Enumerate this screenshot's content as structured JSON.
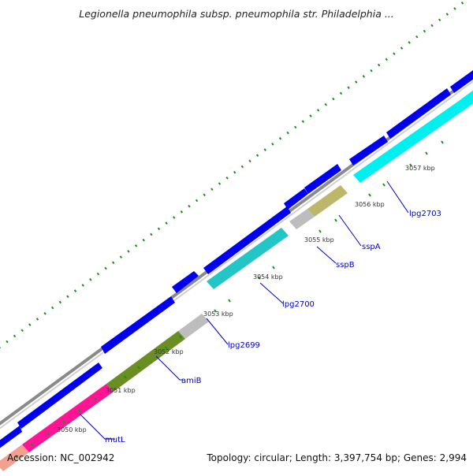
{
  "title": "Legionella pneumophila subsp. pneumophila str. Philadelphia ...",
  "footer": {
    "accession": "Accession: NC_002942",
    "summary": "Topology: circular; Length: 3,397,754 bp; Genes: 2,994"
  },
  "colors": {
    "backbone": "#7f7f7f",
    "forward_genes": "#0000ee",
    "gc_ticks": "#1a8f1a",
    "label_text": "#0000cc"
  },
  "kbp_ticks": [
    "3050 kbp",
    "3051 kbp",
    "3052 kbp",
    "3053 kbp",
    "3054 kbp",
    "3055 kbp",
    "3056 kbp",
    "3057 kbp"
  ],
  "gene_labels": [
    "mutL",
    "amiB",
    "lpg2699",
    "lpg2700",
    "sspB",
    "sspA",
    "lpg2703"
  ]
}
